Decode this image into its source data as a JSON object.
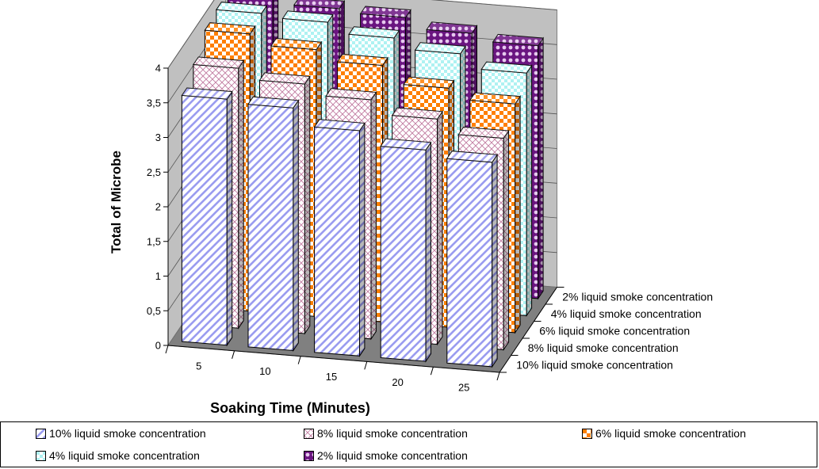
{
  "chart_data": {
    "type": "bar",
    "subtype": "3d-column",
    "title": "",
    "xlabel": "Soaking Time (Minutes)",
    "ylabel": "Total of Microbe",
    "ylim": [
      0,
      4
    ],
    "yticks": [
      "0",
      "0,5",
      "1",
      "1,5",
      "2",
      "2,5",
      "3",
      "3,5",
      "4"
    ],
    "categories": [
      "5",
      "10",
      "15",
      "20",
      "25"
    ],
    "grid": true,
    "legend_position": "bottom",
    "series": [
      {
        "name": "10% liquid smoke concentration",
        "values": [
          3.55,
          3.5,
          3.25,
          3.05,
          2.95
        ],
        "color": "#9a9cf0"
      },
      {
        "name": "8% liquid smoke concentration",
        "values": [
          3.75,
          3.6,
          3.45,
          3.25,
          3.05
        ],
        "color": "#d9a0bd"
      },
      {
        "name": "6% liquid smoke concentration",
        "values": [
          4.0,
          3.85,
          3.7,
          3.45,
          3.3
        ],
        "color": "#ff7f00"
      },
      {
        "name": "4% liquid smoke concentration",
        "values": [
          4.05,
          4.0,
          3.85,
          3.7,
          3.5
        ],
        "color": "#aef2f2"
      },
      {
        "name": "2% liquid smoke concentration",
        "values": [
          4.05,
          3.95,
          3.9,
          3.75,
          3.65
        ],
        "color": "#7a1a8c"
      }
    ]
  }
}
